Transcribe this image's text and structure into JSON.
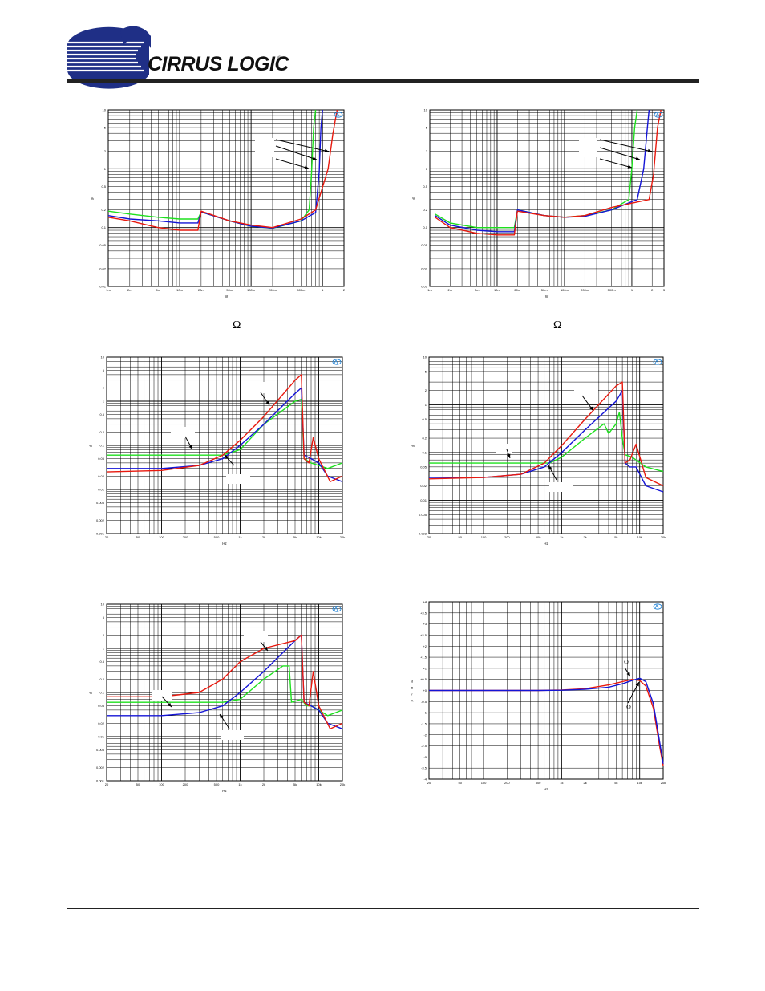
{
  "header": {
    "logo_text": "CIRRUS LOGIC",
    "logo_mark": "®"
  },
  "captions": {
    "left_omega": "Ω",
    "right_omega": "Ω"
  },
  "colors": {
    "red": "#e8190e",
    "blue": "#1414d6",
    "green": "#1ee01e",
    "grid": "#000000",
    "ap_logo": "#1a7fd4"
  },
  "chart_data": [
    {
      "type": "line",
      "axis": "log-log",
      "xlabel": "W",
      "ylabel": "%",
      "x_ticks": [
        "1m",
        "2m",
        "5m",
        "10m",
        "20m",
        "50m",
        "100m",
        "200m",
        "500m",
        "1",
        "2"
      ],
      "y_ticks": [
        "10",
        "5",
        "2",
        "1",
        "0.5",
        "0.2",
        "0.1",
        "0.05",
        "0.02",
        "0.01"
      ],
      "xlim": [
        0.001,
        2
      ],
      "ylim": [
        0.01,
        10
      ],
      "series": [
        {
          "color": "green",
          "x": [
            0.001,
            0.002,
            0.005,
            0.01,
            0.018,
            0.02,
            0.05,
            0.1,
            0.2,
            0.5,
            0.65,
            0.7,
            0.75,
            0.8
          ],
          "y": [
            0.19,
            0.17,
            0.15,
            0.14,
            0.14,
            0.185,
            0.13,
            0.105,
            0.097,
            0.13,
            0.2,
            0.8,
            5,
            10
          ]
        },
        {
          "color": "blue",
          "x": [
            0.001,
            0.002,
            0.005,
            0.01,
            0.018,
            0.02,
            0.05,
            0.1,
            0.2,
            0.5,
            0.8,
            0.9,
            0.95,
            1.0
          ],
          "y": [
            0.16,
            0.14,
            0.13,
            0.12,
            0.12,
            0.185,
            0.13,
            0.105,
            0.098,
            0.13,
            0.18,
            0.9,
            5,
            10
          ]
        },
        {
          "color": "red",
          "x": [
            0.001,
            0.002,
            0.005,
            0.01,
            0.018,
            0.02,
            0.05,
            0.1,
            0.2,
            0.5,
            0.8,
            1.2,
            1.4,
            1.6
          ],
          "y": [
            0.15,
            0.13,
            0.1,
            0.09,
            0.09,
            0.19,
            0.13,
            0.11,
            0.1,
            0.14,
            0.2,
            1.0,
            4,
            10
          ]
        }
      ]
    },
    {
      "type": "line",
      "axis": "log-log",
      "xlabel": "W",
      "ylabel": "%",
      "x_ticks": [
        "1m",
        "2m",
        "5m",
        "10m",
        "20m",
        "50m",
        "100m",
        "200m",
        "500m",
        "1",
        "2",
        "3"
      ],
      "y_ticks": [
        "10",
        "5",
        "2",
        "1",
        "0.5",
        "0.2",
        "0.1",
        "0.05",
        "0.02",
        "0.01"
      ],
      "xlim": [
        0.001,
        3
      ],
      "ylim": [
        0.01,
        10
      ],
      "series": [
        {
          "color": "green",
          "x": [
            0.0012,
            0.002,
            0.005,
            0.01,
            0.018,
            0.02,
            0.05,
            0.1,
            0.2,
            0.5,
            0.9,
            1.0,
            1.1,
            1.2
          ],
          "y": [
            0.17,
            0.12,
            0.1,
            0.1,
            0.1,
            0.2,
            0.16,
            0.15,
            0.16,
            0.2,
            0.3,
            1.0,
            5,
            10
          ]
        },
        {
          "color": "blue",
          "x": [
            0.0012,
            0.002,
            0.005,
            0.01,
            0.018,
            0.02,
            0.05,
            0.1,
            0.2,
            0.5,
            1.2,
            1.5,
            1.7,
            1.8
          ],
          "y": [
            0.16,
            0.11,
            0.09,
            0.085,
            0.085,
            0.2,
            0.16,
            0.15,
            0.155,
            0.2,
            0.3,
            1.0,
            5,
            10
          ]
        },
        {
          "color": "red",
          "x": [
            0.0012,
            0.002,
            0.005,
            0.01,
            0.018,
            0.02,
            0.05,
            0.1,
            0.2,
            0.5,
            1.8,
            2.1,
            2.4,
            2.7
          ],
          "y": [
            0.15,
            0.1,
            0.08,
            0.075,
            0.075,
            0.19,
            0.16,
            0.15,
            0.16,
            0.22,
            0.3,
            0.8,
            5,
            10
          ]
        }
      ]
    },
    {
      "type": "line",
      "axis": "log-log",
      "xlabel": "Hz",
      "ylabel": "%",
      "x_ticks": [
        "20",
        "50",
        "100",
        "200",
        "500",
        "1k",
        "2k",
        "5k",
        "10k",
        "20k"
      ],
      "y_ticks": [
        "10",
        "5",
        "2",
        "1",
        "0.5",
        "0.2",
        "0.1",
        "0.05",
        "0.02",
        "0.01",
        "0.005",
        "0.002",
        "0.001"
      ],
      "xlim": [
        20,
        20000
      ],
      "ylim": [
        0.001,
        10
      ],
      "series": [
        {
          "color": "green",
          "x": [
            20,
            100,
            300,
            600,
            1000,
            2000,
            5000,
            6000,
            6500,
            8000,
            10000,
            13000,
            20000
          ],
          "y": [
            0.06,
            0.06,
            0.06,
            0.06,
            0.08,
            0.3,
            1.0,
            1.1,
            0.05,
            0.04,
            0.035,
            0.03,
            0.04
          ]
        },
        {
          "color": "blue",
          "x": [
            20,
            100,
            300,
            600,
            1000,
            2000,
            5000,
            6000,
            6500,
            8000,
            10000,
            13000,
            20000
          ],
          "y": [
            0.03,
            0.03,
            0.035,
            0.05,
            0.1,
            0.3,
            1.5,
            2.0,
            0.06,
            0.05,
            0.04,
            0.02,
            0.015
          ]
        },
        {
          "color": "red",
          "x": [
            20,
            100,
            300,
            600,
            1000,
            2000,
            5000,
            6000,
            6500,
            7500,
            8500,
            10000,
            14000,
            20000
          ],
          "y": [
            0.025,
            0.027,
            0.035,
            0.06,
            0.13,
            0.45,
            3.0,
            4.0,
            0.05,
            0.04,
            0.15,
            0.05,
            0.015,
            0.02
          ]
        }
      ]
    },
    {
      "type": "line",
      "axis": "log-log",
      "xlabel": "Hz",
      "ylabel": "%",
      "x_ticks": [
        "20",
        "50",
        "100",
        "200",
        "500",
        "1k",
        "2k",
        "5k",
        "10k",
        "20k"
      ],
      "y_ticks": [
        "10",
        "5",
        "2",
        "1",
        "0.5",
        "0.2",
        "0.1",
        "0.05",
        "0.02",
        "0.01",
        "0.005",
        "0.002"
      ],
      "xlim": [
        20,
        20000
      ],
      "ylim": [
        0.002,
        10
      ],
      "series": [
        {
          "color": "green",
          "x": [
            20,
            100,
            300,
            700,
            1000,
            2000,
            3500,
            4000,
            5000,
            5500,
            6000,
            6500,
            8000,
            12000,
            20000
          ],
          "y": [
            0.06,
            0.06,
            0.06,
            0.06,
            0.08,
            0.2,
            0.4,
            0.25,
            0.4,
            0.7,
            0.2,
            0.09,
            0.08,
            0.05,
            0.04
          ]
        },
        {
          "color": "blue",
          "x": [
            20,
            100,
            300,
            600,
            1000,
            2000,
            5000,
            6000,
            6500,
            7500,
            9000,
            12000,
            20000
          ],
          "y": [
            0.03,
            0.03,
            0.035,
            0.05,
            0.1,
            0.3,
            1.2,
            2.0,
            0.06,
            0.05,
            0.05,
            0.02,
            0.015
          ]
        },
        {
          "color": "red",
          "x": [
            20,
            100,
            300,
            600,
            1000,
            2000,
            5000,
            6000,
            6500,
            7500,
            9000,
            12000,
            20000
          ],
          "y": [
            0.028,
            0.03,
            0.035,
            0.06,
            0.14,
            0.5,
            2.5,
            3.0,
            0.06,
            0.07,
            0.15,
            0.03,
            0.02
          ]
        }
      ]
    },
    {
      "type": "line",
      "axis": "log-log",
      "xlabel": "Hz",
      "ylabel": "%",
      "x_ticks": [
        "20",
        "50",
        "100",
        "200",
        "500",
        "1k",
        "2k",
        "5k",
        "10k",
        "20k"
      ],
      "y_ticks": [
        "10",
        "5",
        "2",
        "1",
        "0.5",
        "0.2",
        "0.1",
        "0.05",
        "0.02",
        "0.01",
        "0.005",
        "0.002",
        "0.001"
      ],
      "xlim": [
        20,
        20000
      ],
      "ylim": [
        0.001,
        10
      ],
      "series": [
        {
          "color": "green",
          "x": [
            20,
            100,
            300,
            600,
            1000,
            2000,
            3500,
            4200,
            4500,
            6000,
            7000,
            8000,
            10000,
            13000,
            20000
          ],
          "y": [
            0.06,
            0.06,
            0.06,
            0.06,
            0.07,
            0.2,
            0.4,
            0.4,
            0.06,
            0.07,
            0.05,
            0.05,
            0.04,
            0.03,
            0.04
          ]
        },
        {
          "color": "blue",
          "x": [
            20,
            100,
            300,
            600,
            1000,
            2000,
            5000,
            6000,
            6500,
            8000,
            10000,
            13000,
            20000
          ],
          "y": [
            0.03,
            0.03,
            0.035,
            0.05,
            0.1,
            0.3,
            1.5,
            2.0,
            0.06,
            0.05,
            0.04,
            0.02,
            0.015
          ]
        },
        {
          "color": "red",
          "x": [
            20,
            100,
            300,
            600,
            1000,
            2000,
            5000,
            6000,
            6500,
            7500,
            8500,
            10000,
            14000,
            20000
          ],
          "y": [
            0.08,
            0.08,
            0.1,
            0.2,
            0.5,
            1.0,
            1.5,
            2.0,
            0.06,
            0.05,
            0.3,
            0.05,
            0.015,
            0.02
          ]
        }
      ]
    },
    {
      "type": "line",
      "axis": "log-linear",
      "xlabel": "Hz",
      "ylabel": "dBrA",
      "x_ticks": [
        "20",
        "50",
        "100",
        "200",
        "500",
        "1k",
        "2k",
        "5k",
        "10k",
        "20k"
      ],
      "y_ticks": [
        "+4",
        "+3.5",
        "+3",
        "+2.5",
        "+2",
        "+1.5",
        "+1",
        "+0.5",
        "+0",
        "-0.5",
        "-1",
        "-1.5",
        "-2",
        "-2.5",
        "-3",
        "-3.5",
        "-4"
      ],
      "xlim": [
        20,
        20000
      ],
      "ylim": [
        -4,
        4
      ],
      "annotations": [
        "Ω",
        "Ω"
      ],
      "series": [
        {
          "color": "red",
          "x": [
            20,
            100,
            500,
            1000,
            2000,
            4000,
            6000,
            8000,
            10000,
            12000,
            15000,
            18000,
            20000
          ],
          "y": [
            0,
            0,
            0,
            0.02,
            0.08,
            0.25,
            0.4,
            0.5,
            0.45,
            0.2,
            -0.8,
            -2.5,
            -3.4
          ]
        },
        {
          "color": "blue",
          "x": [
            20,
            100,
            500,
            1000,
            2000,
            4000,
            6000,
            8000,
            10000,
            12000,
            15000,
            18000,
            20000
          ],
          "y": [
            0,
            0,
            0,
            0.01,
            0.05,
            0.15,
            0.3,
            0.45,
            0.55,
            0.4,
            -0.6,
            -2.3,
            -3.3
          ]
        }
      ]
    }
  ]
}
